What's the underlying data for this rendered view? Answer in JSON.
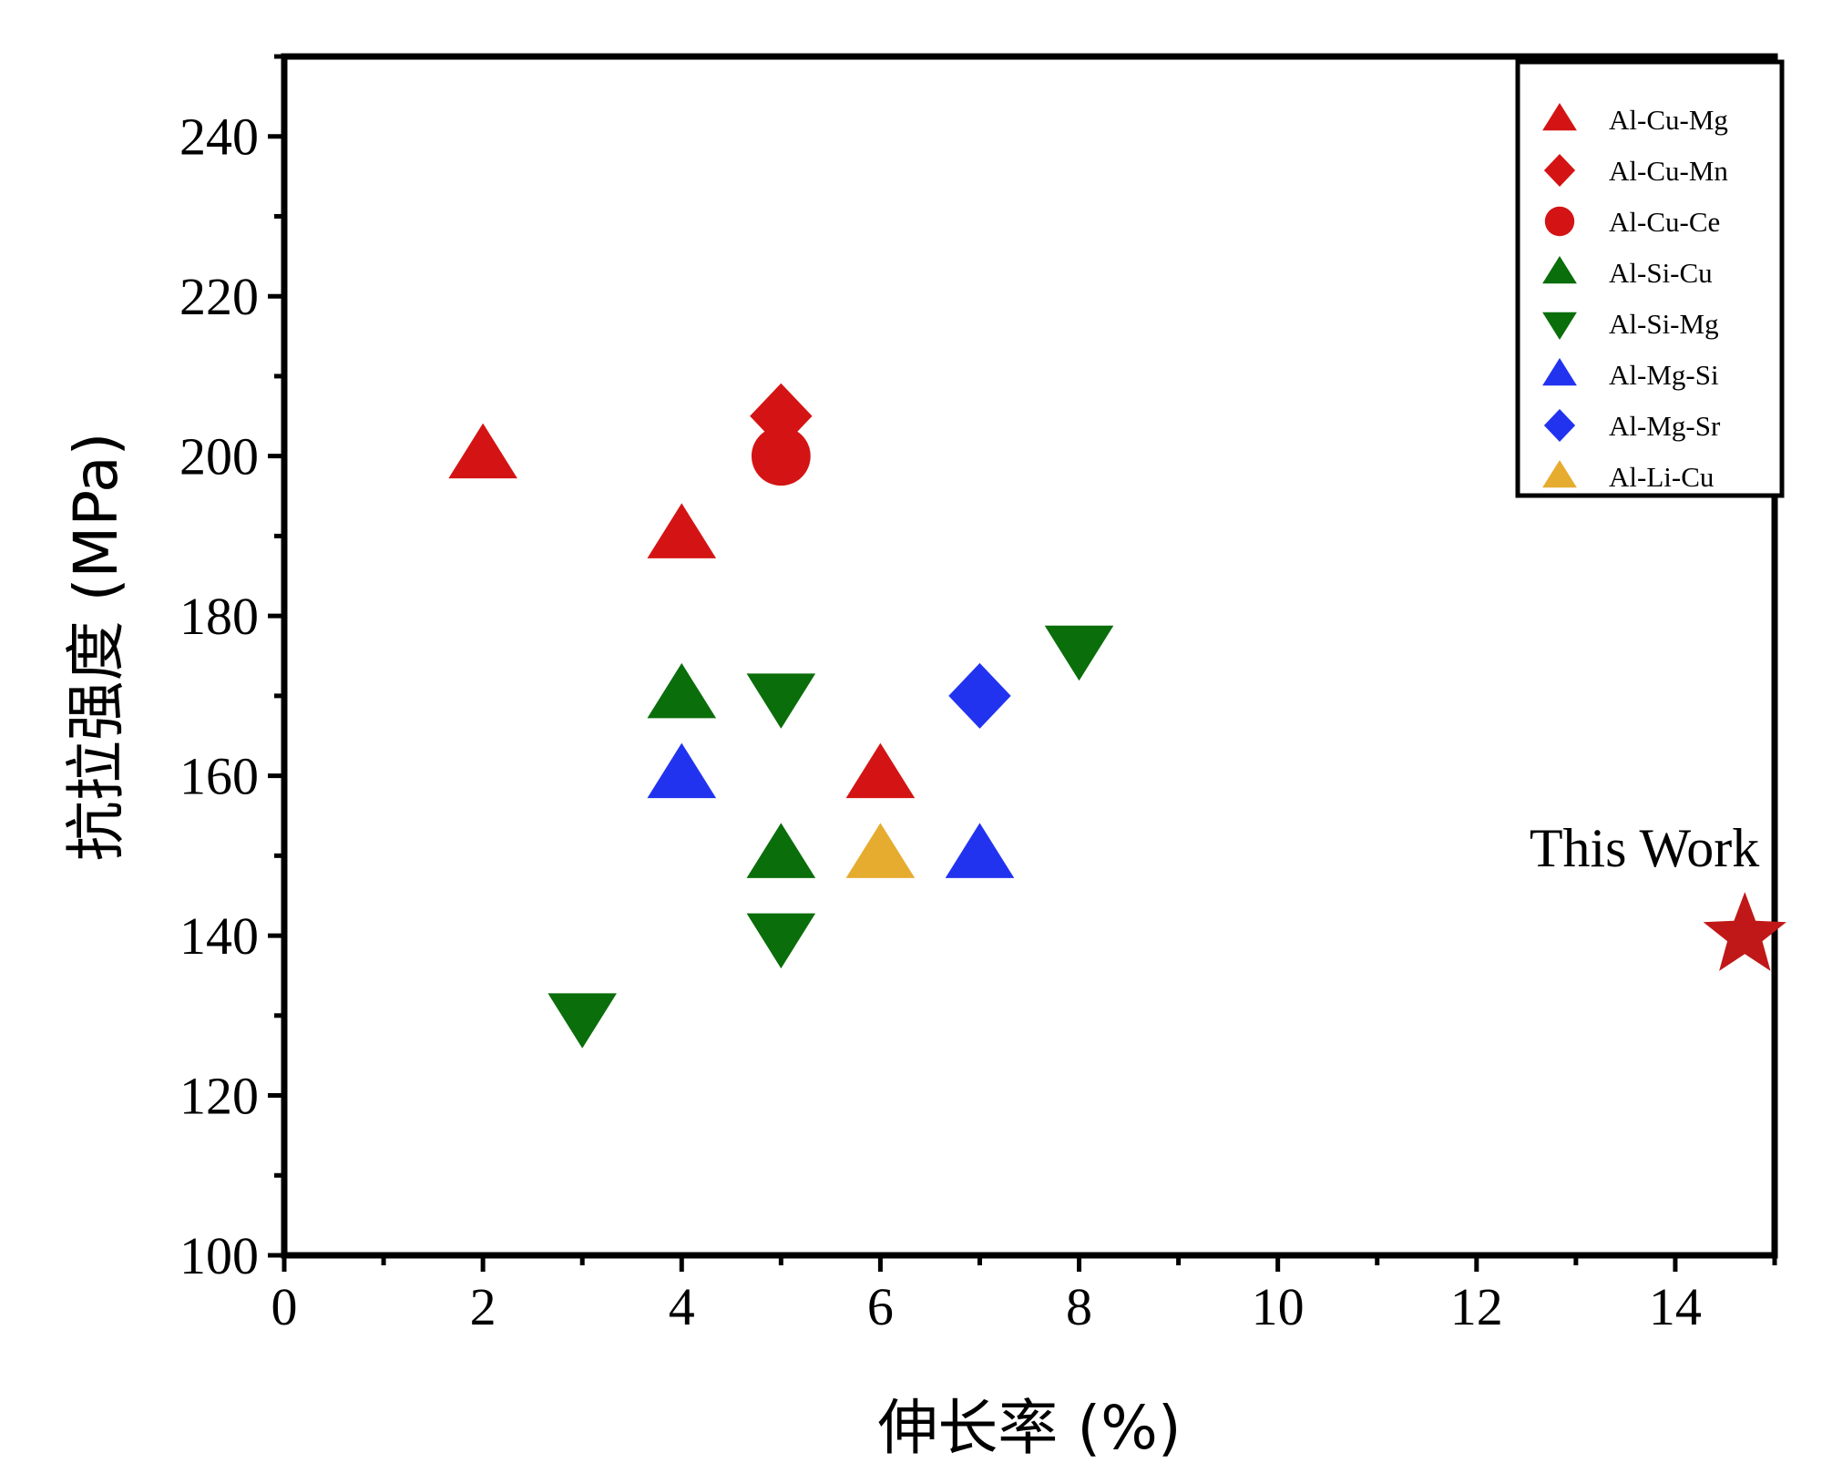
{
  "chart_data": {
    "type": "scatter",
    "xlabel": "伸长率 (%)",
    "ylabel": "抗拉强度 (MPa)",
    "xlim": [
      0,
      15
    ],
    "ylim": [
      100,
      250
    ],
    "xticks": [
      "0",
      "2",
      "4",
      "6",
      "8",
      "10",
      "12",
      "14"
    ],
    "yticks": [
      "100",
      "120",
      "140",
      "160",
      "180",
      "200",
      "220",
      "240"
    ],
    "legend_position": "top-right",
    "grid": false,
    "series": [
      {
        "name": "Al-Cu-Mg",
        "marker": "triangle-up",
        "color": "#d41414",
        "points": [
          [
            2,
            200
          ],
          [
            4,
            190
          ],
          [
            6,
            160
          ]
        ]
      },
      {
        "name": "Al-Cu-Mn",
        "marker": "diamond",
        "color": "#d41414",
        "points": [
          [
            5,
            205
          ]
        ]
      },
      {
        "name": "Al-Cu-Ce",
        "marker": "circle",
        "color": "#d41414",
        "points": [
          [
            5,
            200
          ]
        ]
      },
      {
        "name": "Al-Si-Cu",
        "marker": "triangle-up",
        "color": "#0a6e0a",
        "points": [
          [
            4,
            170
          ],
          [
            5,
            150
          ]
        ]
      },
      {
        "name": "Al-Si-Mg",
        "marker": "triangle-down",
        "color": "#0a6e0a",
        "points": [
          [
            3,
            130
          ],
          [
            5,
            170
          ],
          [
            5,
            140
          ],
          [
            8,
            176
          ]
        ]
      },
      {
        "name": "Al-Mg-Si",
        "marker": "triangle-up",
        "color": "#2233f0",
        "points": [
          [
            4,
            160
          ],
          [
            7,
            150
          ]
        ]
      },
      {
        "name": "Al-Mg-Sr",
        "marker": "diamond",
        "color": "#2233f0",
        "points": [
          [
            7,
            170
          ]
        ]
      },
      {
        "name": "Al-Li-Cu",
        "marker": "triangle-up",
        "color": "#e6ac30",
        "points": [
          [
            6,
            150
          ]
        ]
      }
    ],
    "highlight": {
      "label": "This Work",
      "marker": "star",
      "color": "#c01818",
      "point": [
        14.7,
        140
      ]
    }
  }
}
